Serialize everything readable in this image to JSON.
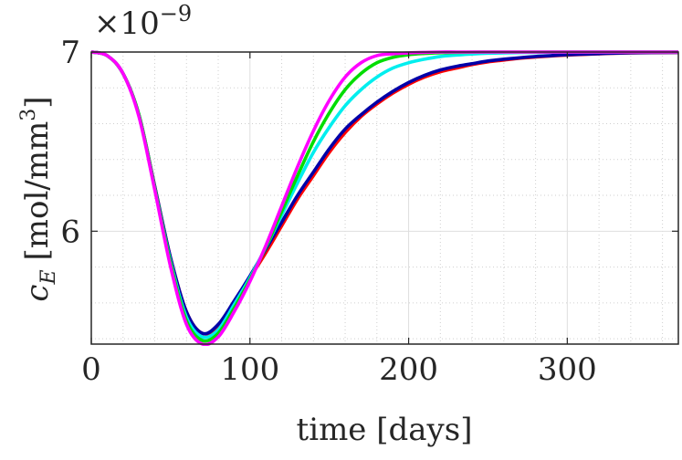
{
  "chart_data": {
    "type": "line",
    "title": "",
    "xlabel": "time [days]",
    "ylabel": "c_E [mol/mm^3]",
    "ylabel_main": "c",
    "ylabel_sub": "E",
    "ylabel_units": "[mol/mm",
    "ylabel_units_sup": "3",
    "ylabel_units_close": "]",
    "y_exponent_prefix": "×10",
    "y_exponent_power": "−9",
    "xlim": [
      0,
      370
    ],
    "ylim": [
      5.37,
      7.0
    ],
    "xticks": [
      0,
      100,
      200,
      300
    ],
    "xtick_labels": [
      "0",
      "100",
      "200",
      "300"
    ],
    "yticks": [
      6,
      7
    ],
    "ytick_labels": [
      "6",
      "7"
    ],
    "grid": true,
    "x": [
      0,
      10,
      20,
      30,
      40,
      50,
      60,
      70,
      80,
      90,
      100,
      110,
      120,
      130,
      140,
      150,
      160,
      170,
      180,
      190,
      200,
      210,
      220,
      230,
      240,
      250,
      260,
      270,
      280,
      290,
      300,
      320,
      340,
      370
    ],
    "series": [
      {
        "name": "red",
        "color": "#ff0000",
        "values": [
          7.0,
          6.98,
          6.88,
          6.65,
          6.25,
          5.85,
          5.55,
          5.43,
          5.47,
          5.6,
          5.74,
          5.88,
          6.03,
          6.18,
          6.31,
          6.44,
          6.55,
          6.64,
          6.71,
          6.77,
          6.82,
          6.86,
          6.89,
          6.91,
          6.93,
          6.945,
          6.955,
          6.965,
          6.972,
          6.978,
          6.983,
          6.99,
          6.995,
          6.998
        ]
      },
      {
        "name": "blue",
        "color": "#0000a8",
        "values": [
          7.0,
          6.98,
          6.88,
          6.65,
          6.25,
          5.85,
          5.55,
          5.43,
          5.48,
          5.61,
          5.75,
          5.9,
          6.05,
          6.2,
          6.33,
          6.46,
          6.57,
          6.65,
          6.72,
          6.78,
          6.83,
          6.87,
          6.9,
          6.92,
          6.935,
          6.95,
          6.96,
          6.968,
          6.975,
          6.98,
          6.985,
          6.991,
          6.996,
          6.998
        ]
      },
      {
        "name": "cyan",
        "color": "#00eeee",
        "values": [
          7.0,
          6.98,
          6.88,
          6.65,
          6.24,
          5.83,
          5.52,
          5.41,
          5.45,
          5.59,
          5.74,
          5.91,
          6.09,
          6.27,
          6.44,
          6.58,
          6.7,
          6.79,
          6.86,
          6.91,
          6.94,
          6.96,
          6.975,
          6.983,
          6.989,
          6.993,
          6.995,
          6.997,
          6.998,
          6.999,
          7.0,
          7.0,
          7.0,
          7.0
        ]
      },
      {
        "name": "green",
        "color": "#00dd00",
        "values": [
          7.0,
          6.98,
          6.88,
          6.65,
          6.24,
          5.82,
          5.5,
          5.39,
          5.43,
          5.57,
          5.73,
          5.91,
          6.11,
          6.31,
          6.5,
          6.66,
          6.79,
          6.88,
          6.94,
          6.97,
          6.985,
          6.992,
          6.996,
          6.998,
          6.999,
          7.0,
          7.0,
          7.0,
          7.0,
          7.0,
          7.0,
          7.0,
          7.0,
          7.0
        ]
      },
      {
        "name": "magenta",
        "color": "#ff00ff",
        "values": [
          7.0,
          6.98,
          6.88,
          6.64,
          6.23,
          5.8,
          5.48,
          5.37,
          5.41,
          5.55,
          5.72,
          5.92,
          6.14,
          6.36,
          6.56,
          6.73,
          6.86,
          6.94,
          6.98,
          6.99,
          6.995,
          6.998,
          7.0,
          7.0,
          7.0,
          7.0,
          7.0,
          7.0,
          7.0,
          7.0,
          7.0,
          7.0,
          7.0,
          7.0
        ]
      }
    ]
  }
}
